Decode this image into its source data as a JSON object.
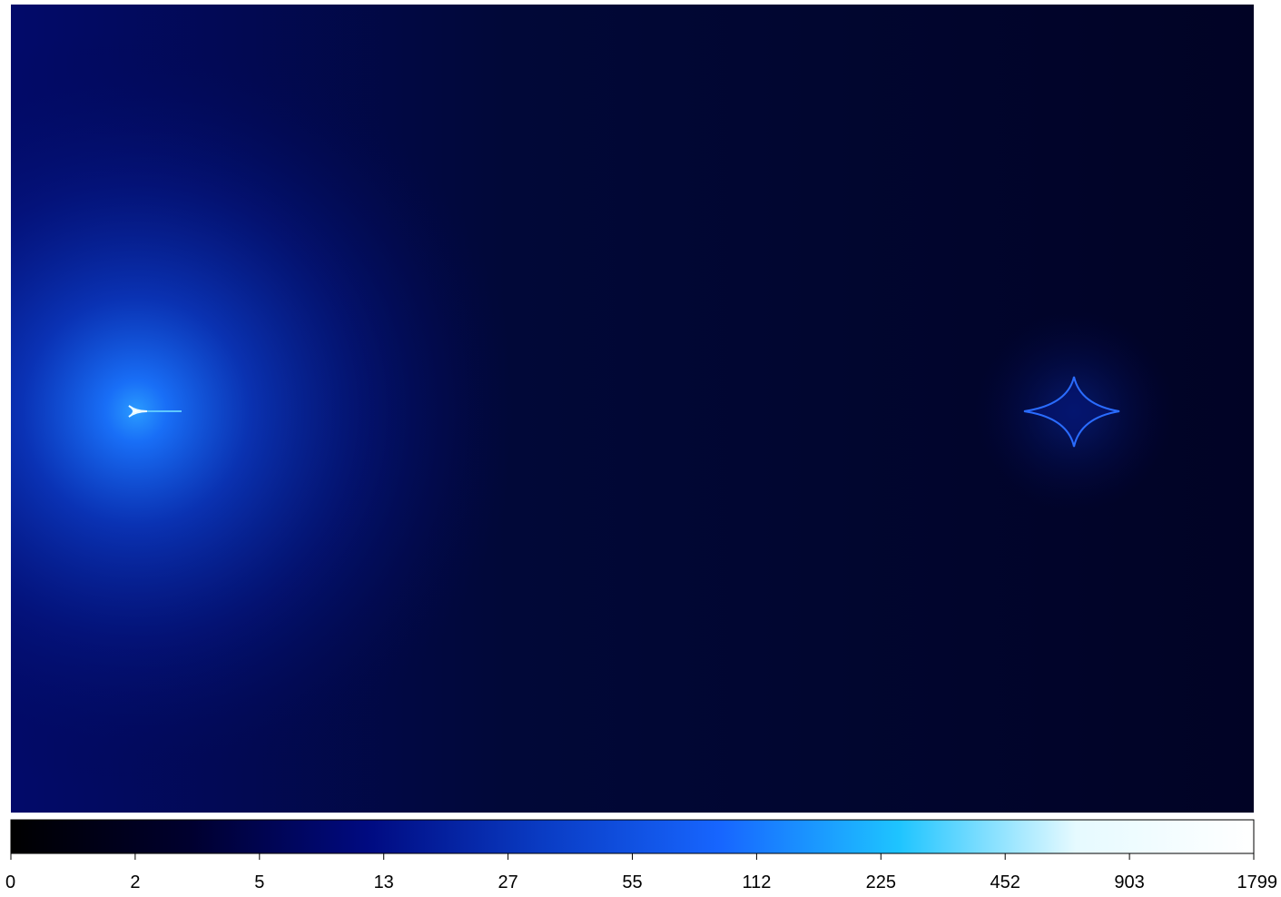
{
  "chart_data": {
    "type": "heatmap",
    "colorbar": {
      "ticks": [
        0,
        2,
        5,
        13,
        27,
        55,
        112,
        225,
        452,
        903,
        1799
      ],
      "lim": [
        0,
        1799
      ],
      "colors": [
        "#000000",
        "#00002e",
        "#000a80",
        "#0a3cc4",
        "#1766ff",
        "#1ec4ff",
        "#e6faff",
        "#ffffff"
      ]
    }
  }
}
